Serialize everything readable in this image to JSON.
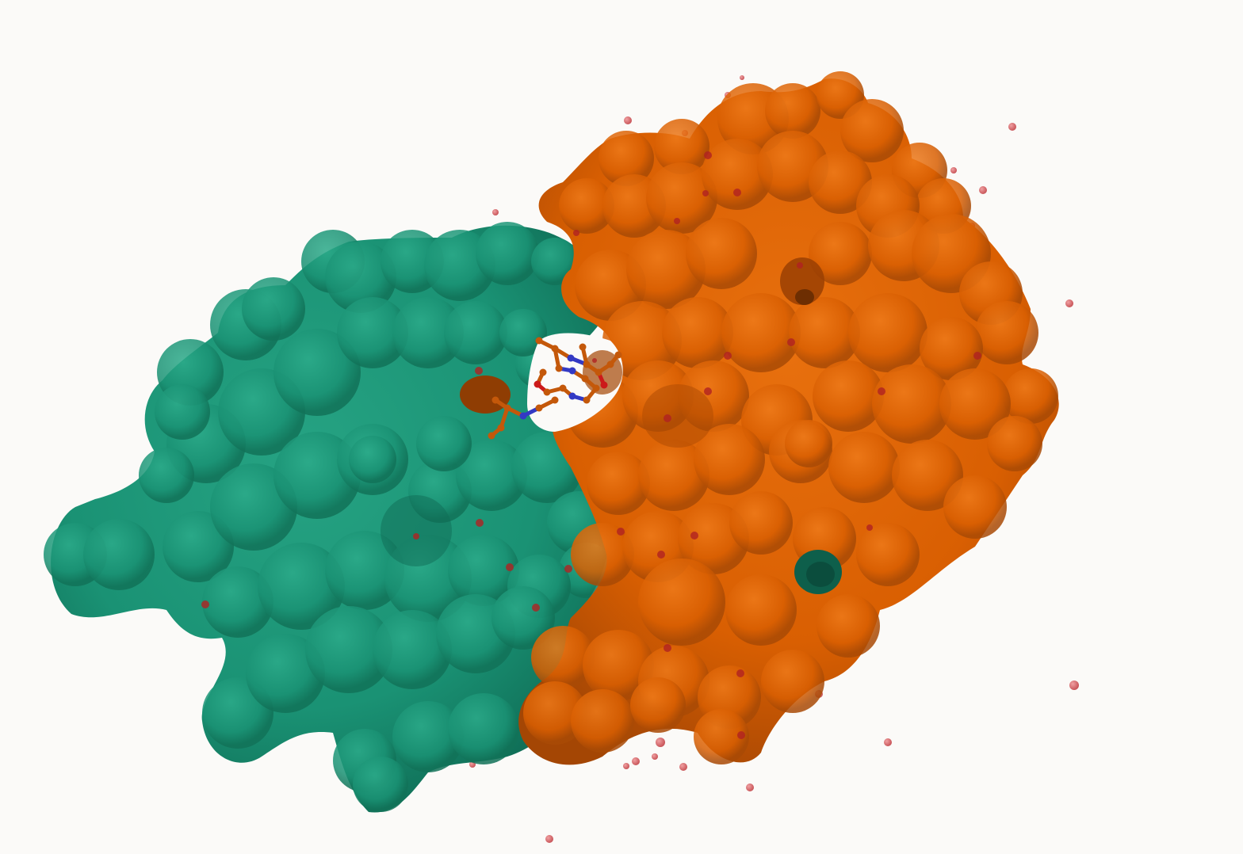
{
  "scene": {
    "background": "#fbfaf8",
    "chains": [
      {
        "id": "A",
        "color": "#1a9274",
        "shade": "#0f6c55",
        "highlight": "#26a383"
      },
      {
        "id": "B",
        "color": "#d95f02",
        "shade": "#a44604",
        "highlight": "#e8700e"
      }
    ],
    "ligand_colors": {
      "carbon": "#c4580a",
      "nitrogen": "#3339c4",
      "oxygen": "#cc1a1a"
    },
    "water_color": "#d9686c"
  }
}
